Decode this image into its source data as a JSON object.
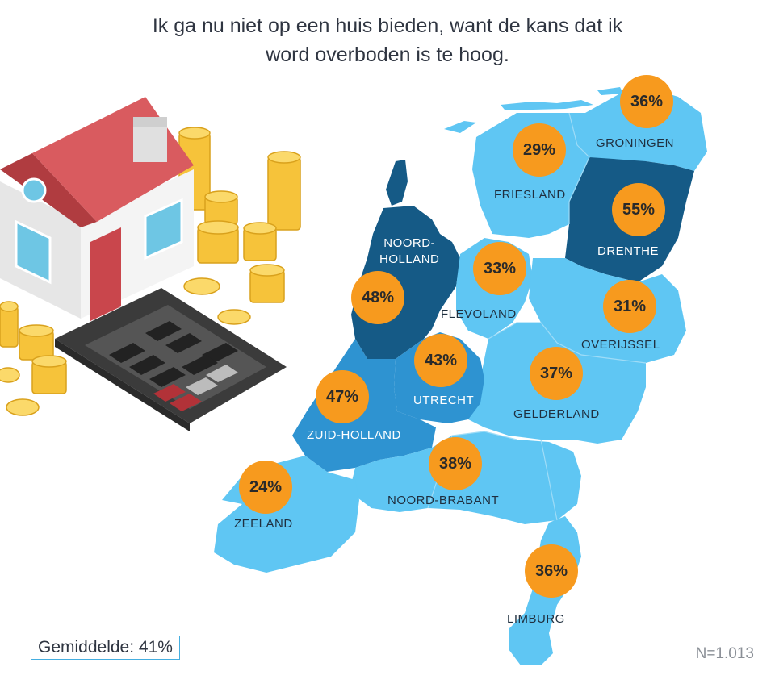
{
  "title": {
    "line1": "Ik ga nu niet op een huis bieden, want de kans dat ik",
    "line2": "word overboden is te hoog."
  },
  "colors": {
    "light": "#5fc6f3",
    "medium": "#2e93d1",
    "dark": "#155a86",
    "bubble": "#f79a1e"
  },
  "provinces": {
    "groningen": {
      "name": "GRONINGEN",
      "value": "36%"
    },
    "friesland": {
      "name": "FRIESLAND",
      "value": "29%"
    },
    "drenthe": {
      "name": "DRENTHE",
      "value": "55%"
    },
    "noord_holland": {
      "name_line1": "NOORD-",
      "name_line2": "HOLLAND",
      "value": "48%"
    },
    "flevoland": {
      "name": "FLEVOLAND",
      "value": "33%"
    },
    "overijssel": {
      "name": "OVERIJSSEL",
      "value": "31%"
    },
    "utrecht": {
      "name": "UTRECHT",
      "value": "43%"
    },
    "gelderland": {
      "name": "GELDERLAND",
      "value": "37%"
    },
    "zuid_holland": {
      "name": "ZUID-HOLLAND",
      "value": "47%"
    },
    "zeeland": {
      "name": "ZEELAND",
      "value": "24%"
    },
    "noord_brabant": {
      "name": "NOORD-BRABANT",
      "value": "38%"
    },
    "limburg": {
      "name": "LIMBURG",
      "value": "36%"
    }
  },
  "average": "Gemiddelde: 41%",
  "sample_size": "N=1.013"
}
